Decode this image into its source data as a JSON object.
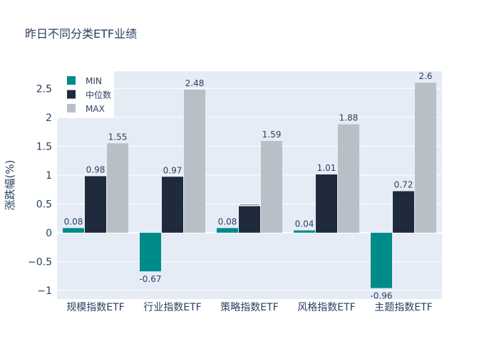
{
  "chart_data": {
    "type": "bar",
    "title": "昨日不同分类ETF业绩",
    "xlabel": "",
    "ylabel": "涨跌幅(%)",
    "ylim": [
      -1.15,
      2.8
    ],
    "yticks": [
      -1,
      -0.5,
      0,
      0.5,
      1,
      1.5,
      2,
      2.5
    ],
    "ytick_labels": [
      "−1",
      "−0.5",
      "0",
      "0.5",
      "1",
      "1.5",
      "2",
      "2.5"
    ],
    "categories": [
      "规模指数ETF",
      "行业指数ETF",
      "策略指数ETF",
      "风格指数ETF",
      "主题指数ETF"
    ],
    "series": [
      {
        "name": "MIN",
        "color": "#008b8b",
        "values": [
          0.08,
          -0.67,
          0.08,
          0.04,
          -0.96
        ],
        "labels": [
          "0.08",
          "-0.67",
          "0.08",
          "0.04",
          "-0.96"
        ]
      },
      {
        "name": "中位数",
        "color": "#1f2a3c",
        "values": [
          0.98,
          0.97,
          0.46,
          1.01,
          0.72
        ],
        "labels": [
          "0.98",
          "0.97",
          "",
          "1.01",
          "0.72"
        ]
      },
      {
        "name": "MAX",
        "color": "#b8bfc7",
        "values": [
          1.55,
          2.48,
          1.59,
          1.88,
          2.6
        ],
        "labels": [
          "1.55",
          "2.48",
          "1.59",
          "1.88",
          "2.6"
        ]
      }
    ],
    "legend_position": "top-left",
    "grid": true,
    "plot_background": "#e5ecf6"
  }
}
